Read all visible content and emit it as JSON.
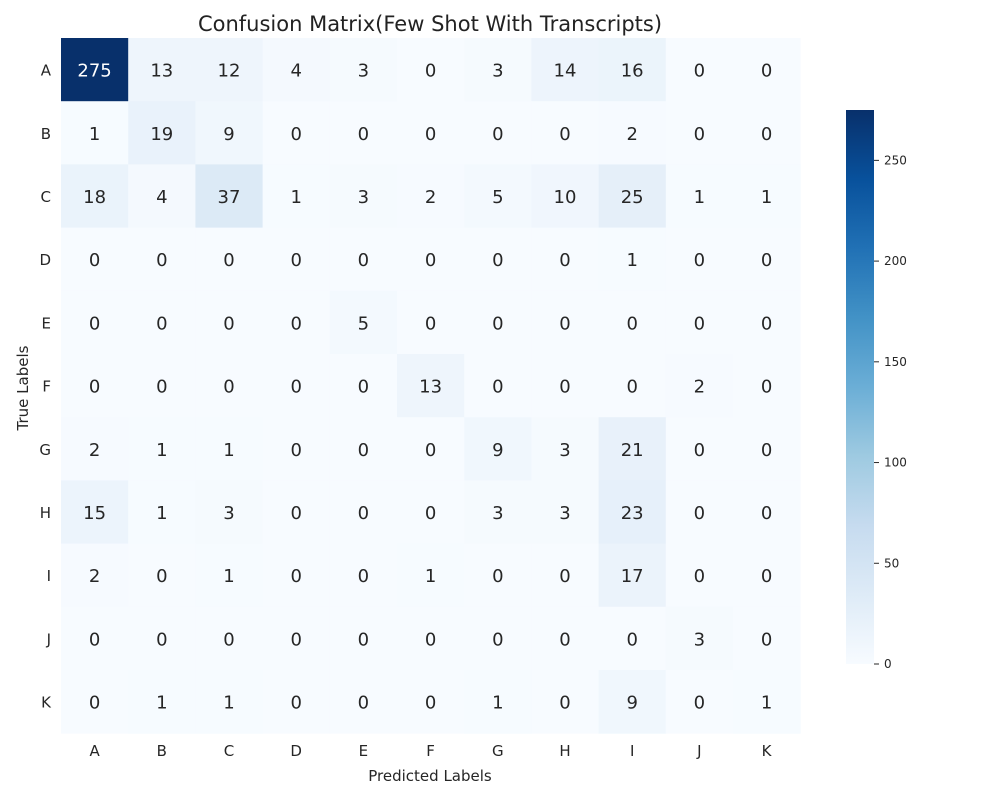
{
  "chart_data": {
    "type": "heatmap",
    "title": "Confusion Matrix(Few Shot With Transcripts)",
    "xlabel": "Predicted Labels",
    "ylabel": "True Labels",
    "x_categories": [
      "A",
      "B",
      "C",
      "D",
      "E",
      "F",
      "G",
      "H",
      "I",
      "J",
      "K"
    ],
    "y_categories": [
      "A",
      "B",
      "C",
      "D",
      "E",
      "F",
      "G",
      "H",
      "I",
      "J",
      "K"
    ],
    "values": [
      [
        275,
        13,
        12,
        4,
        3,
        0,
        3,
        14,
        16,
        0,
        0
      ],
      [
        1,
        19,
        9,
        0,
        0,
        0,
        0,
        0,
        2,
        0,
        0
      ],
      [
        18,
        4,
        37,
        1,
        3,
        2,
        5,
        10,
        25,
        1,
        1
      ],
      [
        0,
        0,
        0,
        0,
        0,
        0,
        0,
        0,
        1,
        0,
        0
      ],
      [
        0,
        0,
        0,
        0,
        5,
        0,
        0,
        0,
        0,
        0,
        0
      ],
      [
        0,
        0,
        0,
        0,
        0,
        13,
        0,
        0,
        0,
        2,
        0
      ],
      [
        2,
        1,
        1,
        0,
        0,
        0,
        9,
        3,
        21,
        0,
        0
      ],
      [
        15,
        1,
        3,
        0,
        0,
        0,
        3,
        3,
        23,
        0,
        0
      ],
      [
        2,
        0,
        1,
        0,
        0,
        1,
        0,
        0,
        17,
        0,
        0
      ],
      [
        0,
        0,
        0,
        0,
        0,
        0,
        0,
        0,
        0,
        3,
        0
      ],
      [
        0,
        1,
        1,
        0,
        0,
        0,
        1,
        0,
        9,
        0,
        1
      ]
    ],
    "colorbar": {
      "range": [
        0,
        275
      ],
      "ticks": [
        0,
        50,
        100,
        150,
        200,
        250
      ],
      "colormap": "Blues"
    },
    "colors": {
      "low": "#f7fbff",
      "high": "#08306b"
    }
  }
}
